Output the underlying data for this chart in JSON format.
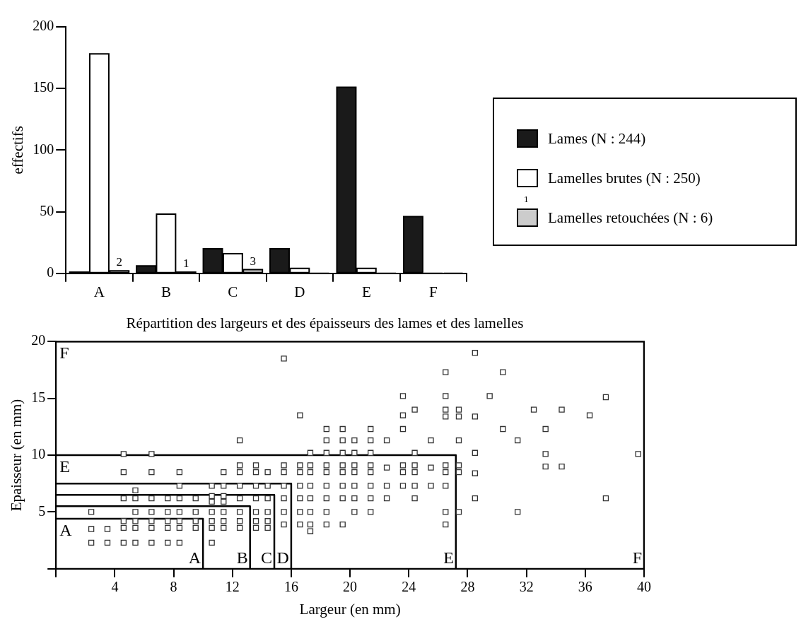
{
  "chart_data": [
    {
      "type": "bar",
      "categories": [
        "A",
        "B",
        "C",
        "D",
        "E",
        "F"
      ],
      "ylabel": "effectifs",
      "ylim": [
        0,
        200
      ],
      "yticks": [
        0,
        50,
        100,
        150,
        200
      ],
      "grid": false,
      "legend": "right",
      "annotations": [
        "1"
      ],
      "series": [
        {
          "name": "Lames (N : 244)",
          "color": "#1a1a1a",
          "values": [
            1,
            6,
            20,
            20,
            151,
            46
          ]
        },
        {
          "name": "Lamelles brutes (N : 250)",
          "color": "#ffffff",
          "values": [
            178,
            48,
            16,
            4,
            4,
            0
          ]
        },
        {
          "name": "Lamelles retouchées (N : 6)",
          "color": "#cccccc",
          "values": [
            2,
            1,
            3,
            0,
            0,
            0
          ],
          "value_labels": [
            "2",
            "1",
            "3",
            null,
            null,
            null
          ]
        }
      ]
    },
    {
      "type": "scatter",
      "title": "Répartition des largeurs et des épaisseurs des lames et des lamelles",
      "xlabel": "Largeur (en mm)",
      "ylabel": "Epaisseur (en mm)",
      "xlim": [
        0,
        40
      ],
      "xticks": [
        {
          "value": 0,
          "label": null
        },
        4,
        8,
        12,
        16,
        20,
        24,
        28,
        32,
        36,
        40
      ],
      "ylim": [
        0,
        20
      ],
      "yticks": [
        {
          "value": 0,
          "label": null
        },
        5,
        10,
        15,
        20
      ],
      "grid": false,
      "annotations": [
        {
          "text": "A",
          "x": 0,
          "y": 4.4
        },
        {
          "text": "E",
          "x": 0,
          "y": 10
        },
        {
          "text": "F",
          "x": 0,
          "y": 20
        },
        {
          "text": "A",
          "x": 10,
          "y": 0
        },
        {
          "text": "B",
          "x": 13.2,
          "y": 0
        },
        {
          "text": "C",
          "x": 14.85,
          "y": 0
        },
        {
          "text": "D",
          "x": 16,
          "y": 0
        },
        {
          "text": "E",
          "x": 27.2,
          "y": 0
        },
        {
          "text": "F",
          "x": 40,
          "y": 0
        }
      ],
      "series": [
        {
          "type": "scatter",
          "color": "#333333",
          "marker": "square",
          "x": [
            2.4,
            2.4,
            2.4,
            3.5,
            3.5,
            4.6,
            4.6,
            4.6,
            4.6,
            4.6,
            4.6,
            5.4,
            5.4,
            5.4,
            5.4,
            5.4,
            5.4,
            6.5,
            6.5,
            6.5,
            6.5,
            6.5,
            6.5,
            6.5,
            7.6,
            7.6,
            7.6,
            7.6,
            7.6,
            8.4,
            8.4,
            8.4,
            8.4,
            8.4,
            8.4,
            8.4,
            9.5,
            9.5,
            9.5,
            9.5,
            10.6,
            10.6,
            10.6,
            10.6,
            10.6,
            10.6,
            10.6,
            11.4,
            11.4,
            11.4,
            11.4,
            11.4,
            11.4,
            11.4,
            12.5,
            12.5,
            12.5,
            12.5,
            12.5,
            12.5,
            12.5,
            12.5,
            13.6,
            13.6,
            13.6,
            13.6,
            13.6,
            13.6,
            13.6,
            14.4,
            14.4,
            14.4,
            14.4,
            14.4,
            14.4,
            15.5,
            15.5,
            15.5,
            15.5,
            15.5,
            15.5,
            15.5,
            16.6,
            16.6,
            16.6,
            16.6,
            16.6,
            16.6,
            16.6,
            17.3,
            17.3,
            17.3,
            17.3,
            17.3,
            17.3,
            17.3,
            17.3,
            18.4,
            18.4,
            18.4,
            18.4,
            18.4,
            18.4,
            18.4,
            18.4,
            18.4,
            19.5,
            19.5,
            19.5,
            19.5,
            19.5,
            19.5,
            19.5,
            19.5,
            20.3,
            20.3,
            20.3,
            20.3,
            20.3,
            20.3,
            20.3,
            21.4,
            21.4,
            21.4,
            21.4,
            21.4,
            21.4,
            21.4,
            21.4,
            22.5,
            22.5,
            22.5,
            22.5,
            23.6,
            23.6,
            23.6,
            23.6,
            23.6,
            23.6,
            24.4,
            24.4,
            24.4,
            24.4,
            24.4,
            24.4,
            25.5,
            25.5,
            25.5,
            26.5,
            26.5,
            26.5,
            26.5,
            26.5,
            26.5,
            26.5,
            26.5,
            26.5,
            27.4,
            27.4,
            27.4,
            27.4,
            27.4,
            27.4,
            28.5,
            28.5,
            28.5,
            28.5,
            28.5,
            29.5,
            30.4,
            30.4,
            31.4,
            31.4,
            32.5,
            33.3,
            33.3,
            33.3,
            34.4,
            34.4,
            36.3,
            37.4,
            37.4,
            39.6
          ],
          "values": [
            2.3,
            3.5,
            5.0,
            2.3,
            3.5,
            2.3,
            3.6,
            4.2,
            6.2,
            8.5,
            10.1,
            2.3,
            3.6,
            4.2,
            5.0,
            6.2,
            6.9,
            2.3,
            3.6,
            4.2,
            5.0,
            6.2,
            8.5,
            10.1,
            2.3,
            3.6,
            4.2,
            5.0,
            6.2,
            2.3,
            3.6,
            4.2,
            5.0,
            6.2,
            7.3,
            8.5,
            3.6,
            4.2,
            5.0,
            6.2,
            2.3,
            3.6,
            4.2,
            5.0,
            5.9,
            6.4,
            7.3,
            3.6,
            4.2,
            5.0,
            5.9,
            6.4,
            7.3,
            8.5,
            3.6,
            4.2,
            5.0,
            6.2,
            7.3,
            8.5,
            9.1,
            11.3,
            3.6,
            4.2,
            5.0,
            6.2,
            7.3,
            8.5,
            9.1,
            3.6,
            4.2,
            5.0,
            6.2,
            7.3,
            8.5,
            3.9,
            5.0,
            6.2,
            7.3,
            8.5,
            9.1,
            18.5,
            3.9,
            5.0,
            6.2,
            7.3,
            8.5,
            9.1,
            13.5,
            3.3,
            3.9,
            5.0,
            6.2,
            7.3,
            8.5,
            9.1,
            10.2,
            3.9,
            5.0,
            6.2,
            7.3,
            8.5,
            9.1,
            10.2,
            11.3,
            12.3,
            3.9,
            6.2,
            7.3,
            8.5,
            9.1,
            10.2,
            11.3,
            12.3,
            5.0,
            6.2,
            7.3,
            8.5,
            9.1,
            10.2,
            11.3,
            5.0,
            6.2,
            7.3,
            8.5,
            9.1,
            10.2,
            11.3,
            12.3,
            6.2,
            7.3,
            8.9,
            11.3,
            7.3,
            8.5,
            9.1,
            12.3,
            13.5,
            15.2,
            6.2,
            7.3,
            8.5,
            9.1,
            10.2,
            14.0,
            7.3,
            8.9,
            11.3,
            3.9,
            5.0,
            7.3,
            8.5,
            9.1,
            13.4,
            14.0,
            15.2,
            17.3,
            5.0,
            8.5,
            9.1,
            11.3,
            13.4,
            14.0,
            6.2,
            8.4,
            10.2,
            13.4,
            19.0,
            15.2,
            12.3,
            17.3,
            5.0,
            11.3,
            14.0,
            9.0,
            10.1,
            12.3,
            9.0,
            14.0,
            13.5,
            6.2,
            15.1,
            10.1
          ]
        },
        {
          "type": "line",
          "color": "#000000",
          "x": [
            0,
            10,
            10
          ],
          "values": [
            4.4,
            4.4,
            0
          ]
        },
        {
          "type": "line",
          "color": "#000000",
          "x": [
            0,
            13.2,
            13.2
          ],
          "values": [
            5.5,
            5.5,
            0
          ]
        },
        {
          "type": "line",
          "color": "#000000",
          "x": [
            0,
            14.85,
            14.85
          ],
          "values": [
            6.5,
            6.5,
            0
          ]
        },
        {
          "type": "line",
          "color": "#000000",
          "x": [
            0,
            16,
            16
          ],
          "values": [
            7.5,
            7.5,
            0
          ]
        },
        {
          "type": "line",
          "color": "#000000",
          "x": [
            0,
            27.2,
            27.2
          ],
          "values": [
            10,
            10,
            0
          ]
        },
        {
          "type": "line",
          "color": "#000000",
          "x": [
            0,
            40,
            40
          ],
          "values": [
            20,
            20,
            0
          ]
        }
      ]
    }
  ]
}
